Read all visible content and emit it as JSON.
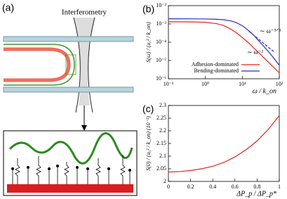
{
  "figure": {
    "panel_label": "(a)",
    "interferometry": "Interferometry"
  },
  "chart_data": [
    {
      "type": "line",
      "panel_label": "(b)",
      "xlabel": "ω / k_on",
      "ylabel": "S(ω) / (u₀² / k_on)",
      "xlog": true,
      "ylog": true,
      "xlim": [
        0.1,
        100
      ],
      "ylim": [
        1e-06,
        0.01
      ],
      "xticks": [
        {
          "value": 0.1,
          "label": "10⁻¹"
        },
        {
          "value": 1,
          "label": "10⁰"
        },
        {
          "value": 10,
          "label": "10¹"
        },
        {
          "value": 100,
          "label": "10²"
        }
      ],
      "yticks": [
        {
          "value": 1e-06,
          "label": "10⁻⁶"
        },
        {
          "value": 1e-05,
          "label": "10⁻⁵"
        },
        {
          "value": 0.0001,
          "label": "10⁻⁴"
        },
        {
          "value": 0.001,
          "label": "10⁻³"
        },
        {
          "value": 0.01,
          "label": "10⁻²"
        }
      ],
      "legend": "bottom-left",
      "series": [
        {
          "name": "Adhesion-dominated",
          "color": "#e8231c",
          "x": [
            0.1,
            0.2,
            0.5,
            1,
            2,
            3,
            5,
            7,
            10,
            15,
            20,
            30,
            50,
            70,
            100
          ],
          "values": [
            0.0013,
            0.0013,
            0.00128,
            0.00122,
            0.00104,
            0.00083,
            0.00051,
            0.00032,
            0.00018,
            8.9e-05,
            5e-05,
            2.3e-05,
            8.3e-06,
            4.3e-06,
            2.1e-06
          ]
        },
        {
          "name": "Bending-dominated",
          "color": "#2a2ad0",
          "x": [
            0.1,
            0.2,
            0.5,
            1,
            2,
            3,
            5,
            7,
            10,
            15,
            20,
            30,
            50,
            70,
            100
          ],
          "values": [
            0.0019,
            0.0019,
            0.00189,
            0.00187,
            0.0018,
            0.0017,
            0.00145,
            0.00115,
            0.0008,
            0.00042,
            0.00025,
            0.0001,
            3.2e-05,
            1.4e-05,
            5.5e-06
          ]
        },
        {
          "color": "#2a2ad0",
          "dashed": true,
          "x": [
            15,
            70
          ],
          "values": [
            0.0004,
            3.1e-05
          ]
        }
      ],
      "annotations": [
        "∼ ω⁻⁵ᐟ³",
        "∼ ω⁻²"
      ]
    },
    {
      "type": "line",
      "panel_label": "(c)",
      "xlabel": "ΔP_p / ΔP_p*",
      "ylabel": "S(0) / (u₀² / k_on)   (10⁻³)",
      "xlim": [
        0,
        1
      ],
      "ylim": [
        2,
        2.3
      ],
      "xticks": [
        0,
        0.2,
        0.4,
        0.6,
        0.8,
        1
      ],
      "yticks": [
        2,
        2.05,
        2.1,
        2.15,
        2.2,
        2.25,
        2.3
      ],
      "series": [
        {
          "color": "#e8231c",
          "x": [
            0,
            0.1,
            0.2,
            0.3,
            0.4,
            0.5,
            0.6,
            0.7,
            0.8,
            0.9,
            1
          ],
          "values": [
            2.037,
            2.039,
            2.043,
            2.05,
            2.06,
            2.075,
            2.097,
            2.125,
            2.16,
            2.205,
            2.26
          ]
        }
      ]
    }
  ]
}
